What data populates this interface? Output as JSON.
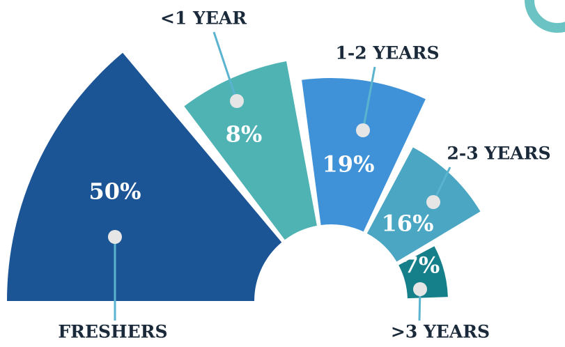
{
  "chart_data": {
    "type": "radial-bar",
    "categories": [
      "FRESHERS",
      "<1 YEAR",
      "1-2 YEARS",
      "2-3 YEARS",
      ">3 YEARS"
    ],
    "values": [
      50,
      8,
      19,
      16,
      7
    ],
    "value_labels": [
      "50%",
      "8%",
      "19%",
      "16%",
      "7%"
    ],
    "colors": [
      "#1c5596",
      "#4fb3b4",
      "#3f92d8",
      "#4aa6c2",
      "#16808a"
    ]
  }
}
